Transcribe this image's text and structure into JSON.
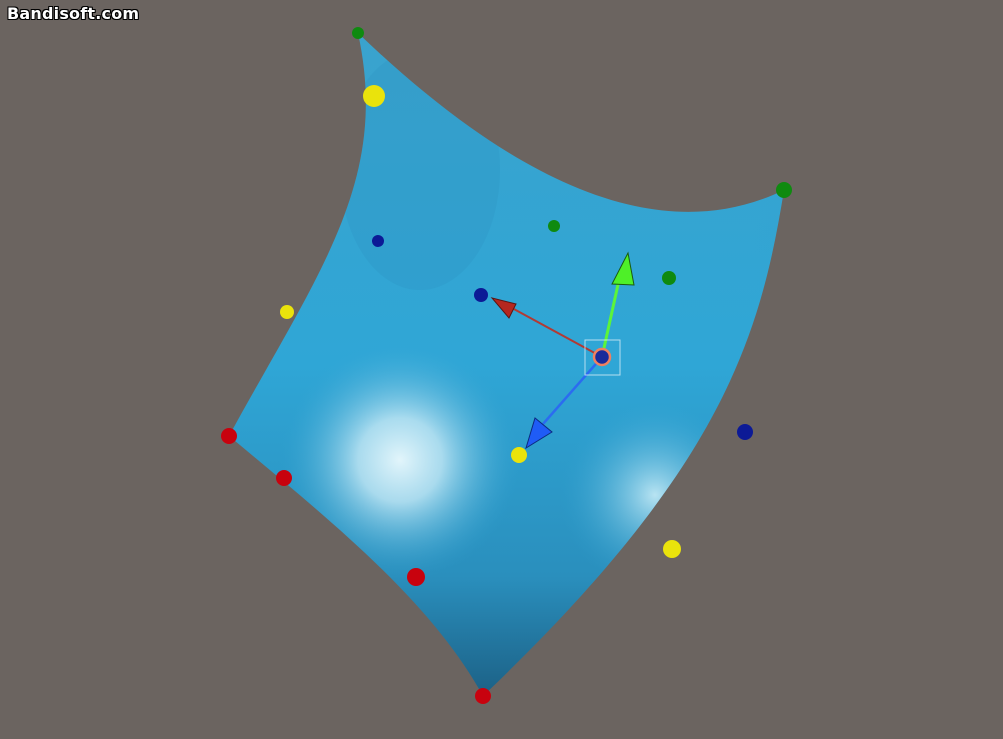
{
  "watermark": "Bandisoft.com",
  "colors": {
    "background": "#6b6460",
    "surface": "#2fa2d2",
    "surface_highlight": "#d8f1fa",
    "surface_shadow": "#1f6e92",
    "control_red": "#c8020e",
    "control_green": "#0f8a10",
    "control_yellow": "#eae30c",
    "control_blue": "#0c1a96",
    "gizmo_x": "#c0342c",
    "gizmo_y": "#4ef028",
    "gizmo_z": "#1f5cf6",
    "gizmo_center": "#f0a080"
  },
  "scene": {
    "object": "bezier-surface-patch",
    "control_point_groups": [
      {
        "name": "red",
        "count": 4
      },
      {
        "name": "green",
        "count": 4
      },
      {
        "name": "yellow",
        "count": 4
      },
      {
        "name": "blue",
        "count": 4
      }
    ],
    "transform_gizmo": {
      "axes": [
        "x-axis-handle",
        "y-axis-handle",
        "z-axis-handle"
      ],
      "selected": true
    }
  }
}
